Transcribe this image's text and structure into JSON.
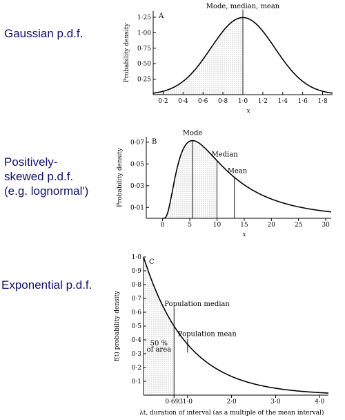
{
  "labels": {
    "gaussian": [
      "Gaussian p.d.f."
    ],
    "skewed": [
      "Positively-",
      "skewed p.d.f.",
      "(e.g. lognormal')"
    ],
    "exponential": [
      "Exponential p.d.f."
    ]
  },
  "chart_data": [
    {
      "type": "line",
      "panel": "A",
      "ylabel": "Probability density",
      "xlabel": "x",
      "xlim": [
        0.1,
        1.9
      ],
      "ylim": [
        0,
        1.35
      ],
      "x_ticks": [
        "0·2",
        "0·4",
        "0·6",
        "0·8",
        "1·0",
        "1·2",
        "1·4",
        "1·6",
        "1·8"
      ],
      "y_ticks": [
        "0·25",
        "0·50",
        "0·75",
        "1·00",
        "1·25"
      ],
      "curve": {
        "kind": "gaussian",
        "mean": 1.0,
        "sd": 0.32,
        "peak": 1.245
      },
      "shaded_to_x": 1.0,
      "annotations": [
        {
          "text": "Mode, median, mean",
          "x": 1.0
        }
      ]
    },
    {
      "type": "line",
      "panel": "B",
      "ylabel": "Probability density",
      "xlabel": "x",
      "xlim": [
        -3,
        31
      ],
      "ylim": [
        0,
        0.075
      ],
      "x_ticks": [
        "0",
        "5",
        "10",
        "15",
        "20",
        "25",
        "30"
      ],
      "y_ticks": [
        "0·01",
        "0·03",
        "0·05",
        "0·07"
      ],
      "curve": {
        "kind": "lognormal",
        "mode": 5.5,
        "median": 10,
        "mean": 13.2,
        "peak": 0.0715
      },
      "shaded_to_x": 10,
      "annotations": [
        {
          "text": "Mode",
          "x": 5.5
        },
        {
          "text": "Median",
          "x": 10
        },
        {
          "text": "Mean",
          "x": 13.2
        }
      ]
    },
    {
      "type": "line",
      "panel": "C",
      "ylabel": "f(t) probability density",
      "xlabel": "λt, duration of interval (as a multiple of the mean interval)",
      "xlim": [
        0,
        4.2
      ],
      "ylim": [
        0,
        1.0
      ],
      "x_ticks": [
        "0·693",
        "1·0",
        "2·0",
        "3·0",
        "4·0"
      ],
      "y_ticks": [
        "0·1",
        "0·2",
        "0·3",
        "0·4",
        "0·5",
        "0·6",
        "0·7",
        "0·8",
        "0·9",
        "1·0"
      ],
      "curve": {
        "kind": "exponential",
        "rate": 1.0
      },
      "shaded_to_x": 0.693,
      "annotations": [
        {
          "text": "Population median",
          "x": 0.693
        },
        {
          "text": "Population mean",
          "x": 1.0
        },
        {
          "text": "50 %",
          "x": 0.35
        },
        {
          "text": "of area",
          "x": 0.35
        }
      ]
    }
  ]
}
